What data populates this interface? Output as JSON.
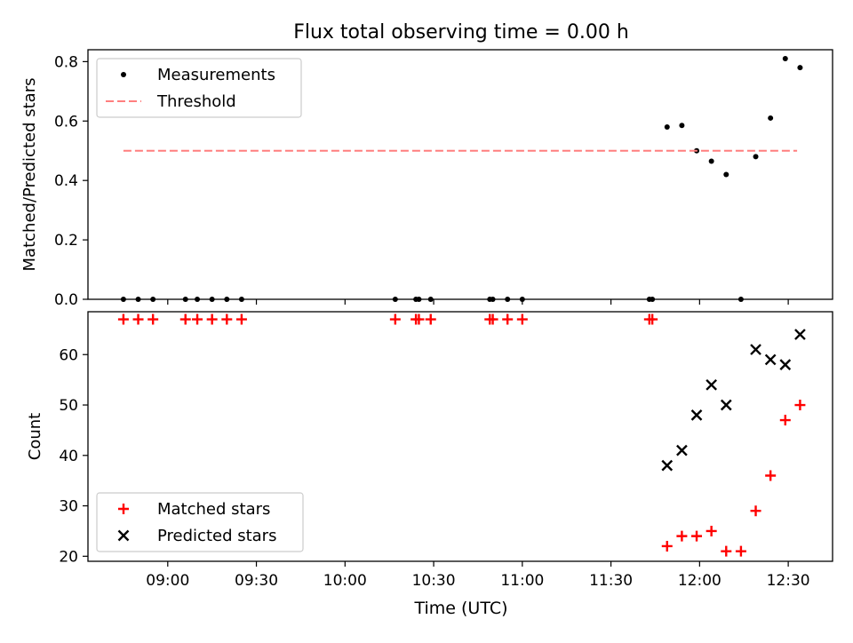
{
  "figure": {
    "title": "Flux total observing time = 0.00 h",
    "xlabel": "Time (UTC)",
    "xticks": [
      "09:00",
      "09:30",
      "10:00",
      "10:30",
      "11:00",
      "11:30",
      "12:00",
      "12:30"
    ]
  },
  "chart_data": [
    {
      "type": "scatter",
      "ylabel": "Matched/Predicted stars",
      "ylim": [
        0,
        0.84
      ],
      "yticks": [
        "0.0",
        "0.2",
        "0.4",
        "0.6",
        "0.8"
      ],
      "legend_placement": "top-left",
      "series": [
        {
          "name": "Measurements",
          "marker": "dot",
          "color": "#000000",
          "points": [
            [
              "08:45",
              0
            ],
            [
              "08:50",
              0
            ],
            [
              "08:55",
              0
            ],
            [
              "09:06",
              0
            ],
            [
              "09:10",
              0
            ],
            [
              "09:15",
              0
            ],
            [
              "09:20",
              0
            ],
            [
              "09:25",
              0
            ],
            [
              "10:17",
              0
            ],
            [
              "10:24",
              0
            ],
            [
              "10:25",
              0
            ],
            [
              "10:29",
              0
            ],
            [
              "10:49",
              0
            ],
            [
              "10:50",
              0
            ],
            [
              "10:55",
              0
            ],
            [
              "11:00",
              0
            ],
            [
              "11:43",
              0
            ],
            [
              "11:44",
              0
            ],
            [
              "11:49",
              0.58
            ],
            [
              "11:54",
              0.585
            ],
            [
              "11:59",
              0.5
            ],
            [
              "12:04",
              0.465
            ],
            [
              "12:09",
              0.42
            ],
            [
              "12:14",
              0
            ],
            [
              "12:19",
              0.48
            ],
            [
              "12:24",
              0.61
            ],
            [
              "12:29",
              0.81
            ],
            [
              "12:34",
              0.78
            ]
          ]
        },
        {
          "name": "Threshold",
          "type": "line",
          "dash": "dashed",
          "color": "#ff7f7f",
          "points": [
            [
              "08:45",
              0.5
            ],
            [
              "12:33",
              0.5
            ]
          ]
        }
      ]
    },
    {
      "type": "scatter",
      "ylabel": "Count",
      "ylim": [
        19,
        68.5
      ],
      "yticks": [
        "20",
        "30",
        "40",
        "50",
        "60"
      ],
      "legend_placement": "bottom-left",
      "series": [
        {
          "name": "Matched stars",
          "marker": "plus",
          "color": "#ff0000",
          "points": [
            [
              "08:45",
              67
            ],
            [
              "08:50",
              67
            ],
            [
              "08:55",
              67
            ],
            [
              "09:06",
              67
            ],
            [
              "09:10",
              67
            ],
            [
              "09:15",
              67
            ],
            [
              "09:20",
              67
            ],
            [
              "09:25",
              67
            ],
            [
              "10:17",
              67
            ],
            [
              "10:24",
              67
            ],
            [
              "10:25",
              67
            ],
            [
              "10:29",
              67
            ],
            [
              "10:49",
              67
            ],
            [
              "10:50",
              67
            ],
            [
              "10:55",
              67
            ],
            [
              "11:00",
              67
            ],
            [
              "11:43",
              67
            ],
            [
              "11:44",
              67
            ],
            [
              "11:49",
              22
            ],
            [
              "11:54",
              24
            ],
            [
              "11:59",
              24
            ],
            [
              "12:04",
              25
            ],
            [
              "12:09",
              21
            ],
            [
              "12:14",
              21
            ],
            [
              "12:19",
              29
            ],
            [
              "12:24",
              36
            ],
            [
              "12:29",
              47
            ],
            [
              "12:34",
              50
            ]
          ]
        },
        {
          "name": "Predicted stars",
          "marker": "x",
          "color": "#000000",
          "points": [
            [
              "11:49",
              38
            ],
            [
              "11:54",
              41
            ],
            [
              "11:59",
              48
            ],
            [
              "12:04",
              54
            ],
            [
              "12:09",
              50
            ],
            [
              "12:19",
              61
            ],
            [
              "12:24",
              59
            ],
            [
              "12:29",
              58
            ],
            [
              "12:34",
              64
            ]
          ]
        }
      ]
    }
  ]
}
